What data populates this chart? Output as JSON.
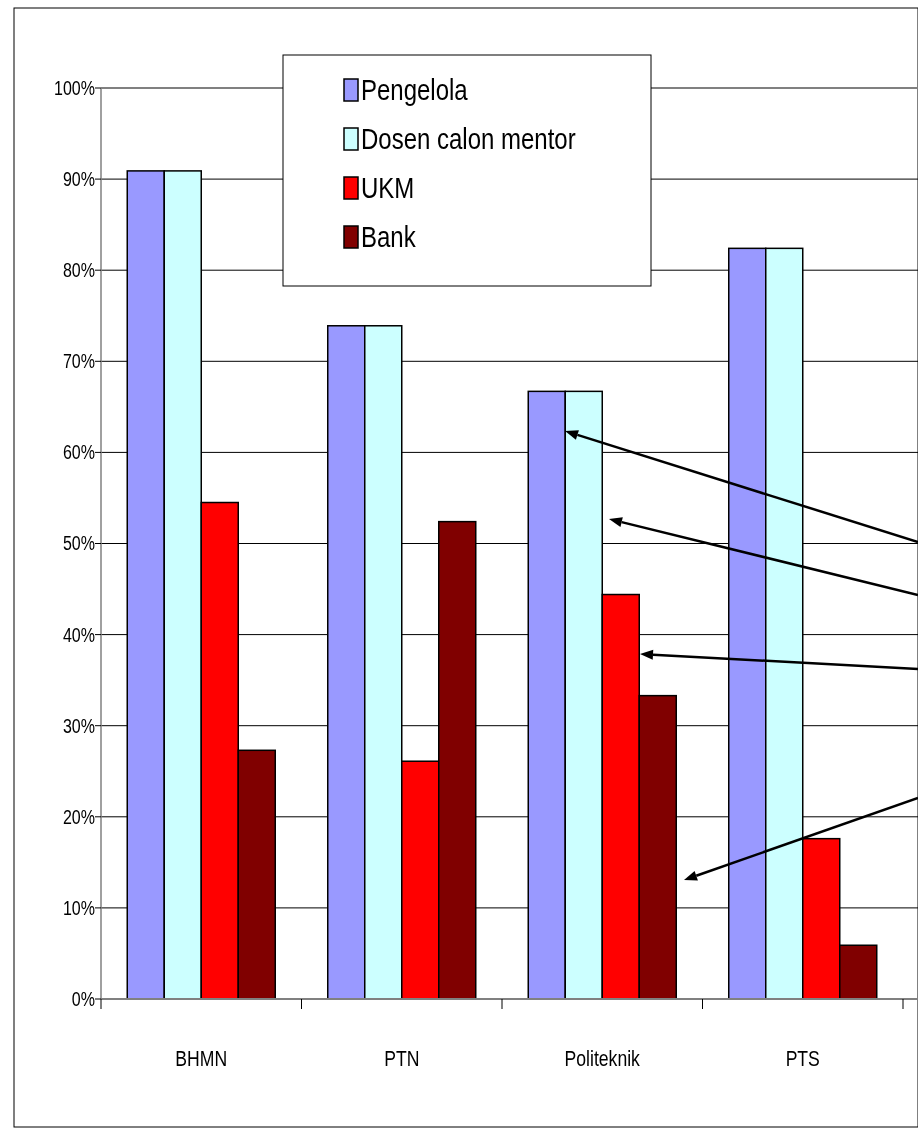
{
  "chart_data": {
    "type": "bar",
    "categories": [
      "BHMN",
      "PTN",
      "Politeknik",
      "PTS"
    ],
    "series": [
      {
        "name": "Pengelola",
        "color": "#9999ff",
        "values": [
          90.9,
          73.9,
          66.7,
          82.4
        ]
      },
      {
        "name": "Dosen calon mentor",
        "color": "#ccffff",
        "values": [
          90.9,
          73.9,
          66.7,
          82.4
        ]
      },
      {
        "name": "UKM",
        "color": "#ff0000",
        "values": [
          54.5,
          26.1,
          44.4,
          17.6
        ]
      },
      {
        "name": "Bank",
        "color": "#800000",
        "values": [
          27.3,
          52.4,
          33.3,
          5.9
        ]
      }
    ],
    "ylim": [
      0,
      100
    ],
    "yticks": [
      {
        "value": 0,
        "label": "0%"
      },
      {
        "value": 10,
        "label": "10%"
      },
      {
        "value": 20,
        "label": "20%"
      },
      {
        "value": 30,
        "label": "30%"
      },
      {
        "value": 40,
        "label": "40%"
      },
      {
        "value": 50,
        "label": "50%"
      },
      {
        "value": 60,
        "label": "60%"
      },
      {
        "value": 70,
        "label": "70%"
      },
      {
        "value": 80,
        "label": "80%"
      },
      {
        "value": 90,
        "label": "90%"
      },
      {
        "value": 100,
        "label": "100%"
      }
    ],
    "grid": "y",
    "legend": "top"
  }
}
